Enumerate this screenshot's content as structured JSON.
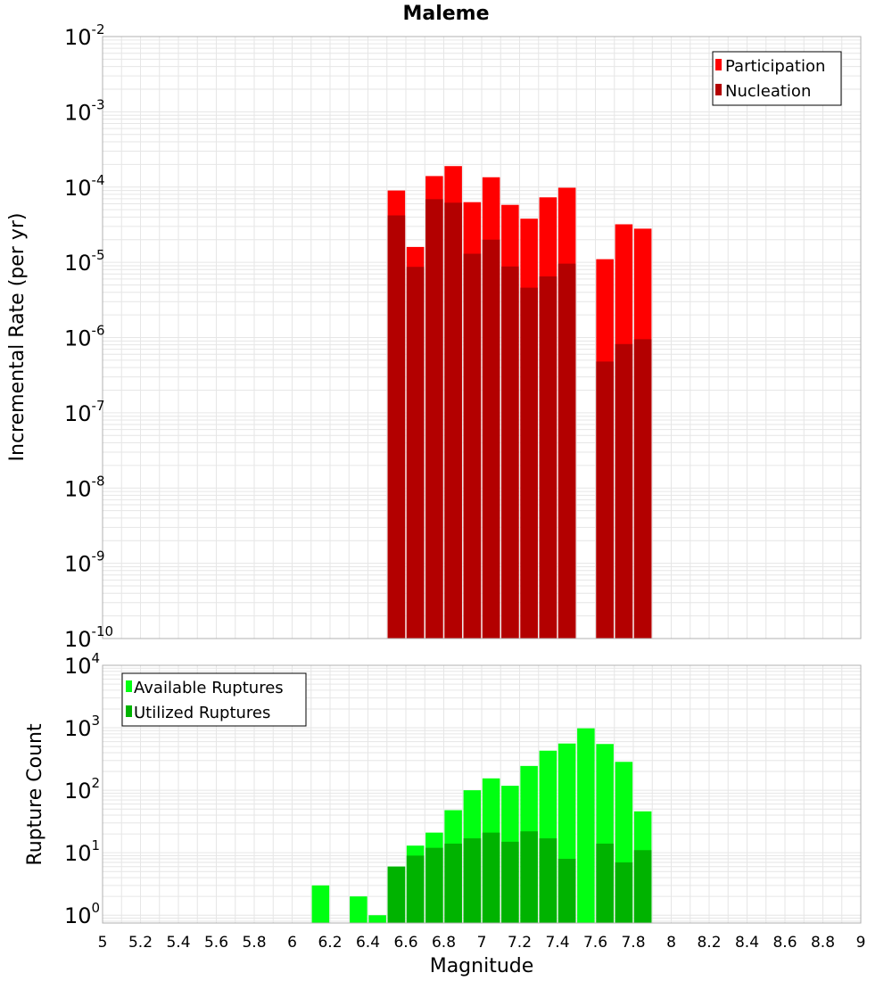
{
  "chart_data": [
    {
      "type": "bar",
      "title": "Maleme",
      "xlabel": "",
      "ylabel": "Incremental Rate (per yr)",
      "xlim": [
        5,
        9
      ],
      "ylim": [
        1e-10,
        0.01
      ],
      "yscale": "log",
      "grid": true,
      "legend_position": "top-right",
      "x": [
        6.55,
        6.65,
        6.75,
        6.85,
        6.95,
        7.05,
        7.15,
        7.25,
        7.35,
        7.45,
        7.55,
        7.65,
        7.75,
        7.85
      ],
      "series": [
        {
          "name": "Participation",
          "color": "#ff0000",
          "values": [
            9e-05,
            1.6e-05,
            0.00014,
            0.00019,
            6.3e-05,
            0.000135,
            5.8e-05,
            3.8e-05,
            7.3e-05,
            9.8e-05,
            null,
            1.1e-05,
            3.2e-05,
            2.8e-05
          ]
        },
        {
          "name": "Nucleation",
          "color": "#b30000",
          "values": [
            4.2e-05,
            8.7e-06,
            6.9e-05,
            6.2e-05,
            1.3e-05,
            2e-05,
            8.8e-06,
            4.6e-06,
            6.5e-06,
            9.6e-06,
            null,
            4.8e-07,
            8.2e-07,
            9.5e-07
          ]
        }
      ]
    },
    {
      "type": "bar",
      "title": "",
      "xlabel": "Magnitude",
      "ylabel": "Rupture Count",
      "xlim": [
        5,
        9
      ],
      "ylim": [
        0.75,
        10000.0
      ],
      "yscale": "log",
      "grid": true,
      "legend_position": "top-left",
      "x": [
        6.15,
        6.25,
        6.35,
        6.45,
        6.55,
        6.65,
        6.75,
        6.85,
        6.95,
        7.05,
        7.15,
        7.25,
        7.35,
        7.45,
        7.55,
        7.65,
        7.75,
        7.85
      ],
      "series": [
        {
          "name": "Available Ruptures",
          "color": "#00ff11",
          "values": [
            3,
            null,
            2,
            1,
            6,
            13,
            21,
            48,
            100,
            155,
            118,
            245,
            430,
            560,
            980,
            550,
            285,
            46
          ]
        },
        {
          "name": "Utilized Ruptures",
          "color": "#00b300",
          "values": [
            null,
            null,
            null,
            null,
            6,
            9,
            12,
            14,
            17,
            21,
            15,
            22,
            17,
            8,
            null,
            14,
            7,
            11
          ]
        }
      ]
    }
  ],
  "x_ticks": [
    "5",
    "5.2",
    "5.4",
    "5.6",
    "5.8",
    "6",
    "6.2",
    "6.4",
    "6.6",
    "6.8",
    "7",
    "7.2",
    "7.4",
    "7.6",
    "7.8",
    "8",
    "8.2",
    "8.4",
    "8.6",
    "8.8",
    "9"
  ],
  "top_y_ticks": [
    {
      "base": "10",
      "exp": "-2"
    },
    {
      "base": "10",
      "exp": "-3"
    },
    {
      "base": "10",
      "exp": "-4"
    },
    {
      "base": "10",
      "exp": "-5"
    },
    {
      "base": "10",
      "exp": "-6"
    },
    {
      "base": "10",
      "exp": "-7"
    },
    {
      "base": "10",
      "exp": "-8"
    },
    {
      "base": "10",
      "exp": "-9"
    },
    {
      "base": "10",
      "exp": "-10"
    }
  ],
  "bottom_y_ticks": [
    {
      "base": "10",
      "exp": "4"
    },
    {
      "base": "10",
      "exp": "3"
    },
    {
      "base": "10",
      "exp": "2"
    },
    {
      "base": "10",
      "exp": "1"
    },
    {
      "base": "10",
      "exp": "0"
    }
  ],
  "colors": {
    "grid": "#e6e6e6",
    "frame": "#b0b0b0",
    "legend_border": "#000000"
  }
}
